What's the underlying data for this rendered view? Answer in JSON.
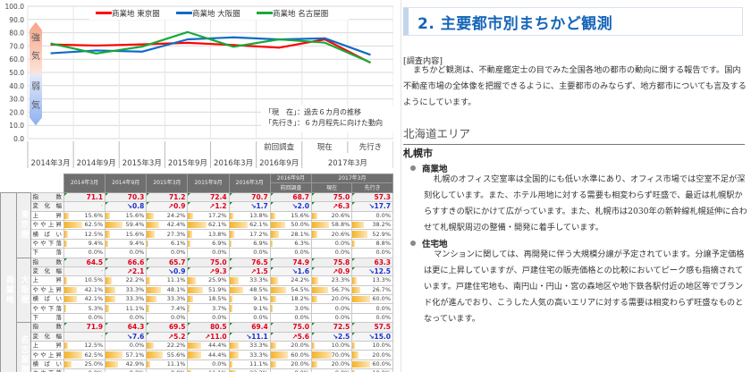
{
  "chart_data": {
    "type": "line",
    "title": "",
    "categories": [
      "2014年3月",
      "2014年9月",
      "2015年3月",
      "2015年9月",
      "2016年3月",
      "2016年9月 前回調査",
      "2017年3月 現在",
      "2017年3月 先行き"
    ],
    "x_axis": {
      "top_labels": [
        "",
        "",
        "",
        "",
        "",
        "前回調査",
        "現在",
        "先行き"
      ],
      "bottom_labels": [
        "2014年3月",
        "2014年9月",
        "2015年3月",
        "2015年9月",
        "2016年3月",
        "2016年9月",
        "2017年3月"
      ]
    },
    "series": [
      {
        "name": "商業地 東京圏",
        "color": "#ff0000",
        "values": [
          71.1,
          70.3,
          71.2,
          72.4,
          70.7,
          68.7,
          75.0,
          57.3
        ]
      },
      {
        "name": "商業地 大阪圏",
        "color": "#0f6bc6",
        "values": [
          64.5,
          66.6,
          65.7,
          75.0,
          76.5,
          74.9,
          75.8,
          63.3
        ]
      },
      {
        "name": "商業地 名古屋圏",
        "color": "#1aa83a",
        "values": [
          71.9,
          64.3,
          69.5,
          80.5,
          69.4,
          75.0,
          72.5,
          57.5
        ]
      }
    ],
    "ylim": [
      0,
      100
    ],
    "yticks": [
      "100.0",
      "90.0",
      "80.0",
      "70.0",
      "60.0",
      "50.0",
      "40.0",
      "30.0",
      "20.0",
      "10.0",
      "0.0"
    ],
    "grid": true,
    "legend_position": "top",
    "arrow_labels": {
      "strong": [
        "強",
        "気"
      ],
      "weak": [
        "弱",
        "気"
      ]
    },
    "annotations": [
      "「現　在」：過去６カ月の推移",
      "「先行き」：６カ月程先に向けた動向"
    ]
  },
  "table": {
    "headers": {
      "periods": [
        "2014年3月",
        "2014年9月",
        "2015年3月",
        "2015年9月",
        "2016年3月",
        "2016年9月",
        "2017年3月"
      ],
      "sub": {
        "prev": "前回調査",
        "now": "現在",
        "future": "先行き"
      }
    },
    "group_label": "商業地",
    "row_labels": [
      "指数",
      "変化幅",
      "上昇",
      "やや上昇",
      "横ばい",
      "やや下落",
      "下落"
    ],
    "regions": [
      {
        "name": "東京圏",
        "index": [
          "71.1",
          "70.3",
          "71.2",
          "72.4",
          "70.7",
          "68.7",
          "75.0",
          "57.3"
        ],
        "change": [
          "-",
          "↘0.8",
          "↗0.9",
          "↗1.2",
          "↘1.7",
          "↘2.0",
          "↗6.3",
          "↘17.7"
        ],
        "change_dir": [
          "none",
          "down",
          "up",
          "up",
          "down",
          "down",
          "up",
          "down"
        ],
        "rise": [
          "15.6%",
          "15.6%",
          "24.2%",
          "17.2%",
          "13.8%",
          "15.6%",
          "20.6%",
          "0.0%"
        ],
        "slight_rise": [
          "62.5%",
          "59.4%",
          "42.4%",
          "62.1%",
          "62.1%",
          "50.0%",
          "58.8%",
          "38.2%"
        ],
        "flat": [
          "12.5%",
          "15.6%",
          "27.3%",
          "13.8%",
          "17.2%",
          "28.1%",
          "20.6%",
          "52.9%"
        ],
        "slight_fall": [
          "9.4%",
          "9.4%",
          "6.1%",
          "6.9%",
          "6.9%",
          "6.3%",
          "0.0%",
          "8.8%"
        ],
        "fall": [
          "0.0%",
          "0.0%",
          "0.0%",
          "0.0%",
          "0.0%",
          "0.0%",
          "0.0%",
          "0.0%"
        ]
      },
      {
        "name": "大阪圏",
        "index": [
          "64.5",
          "66.6",
          "65.7",
          "75.0",
          "76.5",
          "74.9",
          "75.8",
          "63.3"
        ],
        "change": [
          "-",
          "↗2.1",
          "↘0.9",
          "↗9.3",
          "↗1.5",
          "↘1.6",
          "↗0.9",
          "↘12.5"
        ],
        "change_dir": [
          "none",
          "up",
          "down",
          "up",
          "up",
          "down",
          "up",
          "down"
        ],
        "rise": [
          "10.5%",
          "22.2%",
          "11.1%",
          "25.9%",
          "33.3%",
          "24.2%",
          "23.3%",
          "13.3%"
        ],
        "slight_rise": [
          "42.1%",
          "33.3%",
          "48.1%",
          "51.9%",
          "48.5%",
          "54.5%",
          "56.7%",
          "26.7%"
        ],
        "flat": [
          "42.1%",
          "33.3%",
          "33.3%",
          "18.5%",
          "9.1%",
          "18.2%",
          "20.0%",
          "60.0%"
        ],
        "slight_fall": [
          "5.3%",
          "11.1%",
          "7.4%",
          "3.7%",
          "9.1%",
          "3.0%",
          "0.0%",
          "0.0%"
        ],
        "fall": [
          "0.0%",
          "0.0%",
          "0.0%",
          "0.0%",
          "0.0%",
          "0.0%",
          "0.0%",
          "0.0%"
        ]
      },
      {
        "name": "名古屋圏",
        "index": [
          "71.9",
          "64.3",
          "69.5",
          "80.5",
          "69.4",
          "75.0",
          "72.5",
          "57.5"
        ],
        "change": [
          "-",
          "↘7.6",
          "↗5.2",
          "↗11.0",
          "↘11.1",
          "↗5.6",
          "↘2.5",
          "↘15.0"
        ],
        "change_dir": [
          "none",
          "down",
          "up",
          "up",
          "down",
          "up",
          "down",
          "down"
        ],
        "rise": [
          "12.5%",
          "0.0%",
          "22.2%",
          "44.4%",
          "33.3%",
          "20.0%",
          "10.0%",
          "10.0%"
        ],
        "slight_rise": [
          "62.5%",
          "57.1%",
          "55.6%",
          "44.4%",
          "33.3%",
          "60.0%",
          "70.0%",
          "20.0%"
        ],
        "flat": [
          "25.0%",
          "42.9%",
          "11.1%",
          "0.0%",
          "11.1%",
          "20.0%",
          "20.0%",
          "60.0%"
        ],
        "slight_fall": [
          "0.0%",
          "0.0%",
          "0.0%",
          "11.1%",
          "22.2%",
          "0.0%",
          "0.0%",
          "10.0%"
        ],
        "fall": [
          "0.0%",
          "0.0%",
          "11.1%",
          "0.0%",
          "0.0%",
          "0.0%",
          "0.0%",
          "0.0%"
        ]
      }
    ]
  },
  "article": {
    "section_title": "2. 主要都市別まちかど観測",
    "survey_label": "[調査内容]",
    "survey_body": "まちかど観測は、不動産鑑定士の目でみた全国各地の都市の動向に関する報告です。国内不動産市場の全体像を把握できるように、主要都市のみならず、地方都市についても言及するようにしています。",
    "area_heading": "北海道エリア",
    "city": "札幌市",
    "commercial_label": "商業地",
    "commercial_body": "札幌のオフィス空室率は全国的にも低い水準にあり、オフィス市場では空室不足が深刻化しています。また、ホテル用地に対する需要も相変わらず旺盛で、最近は札幌駅からすすきの駅にかけて広がっています。また、札幌市は2030年の新幹線札幌延伸に合わせて札幌駅周辺の整備・開発に着手しています。",
    "residential_label": "住宅地",
    "residential_body": "マンションに関しては、再開発に伴う大規模分譲が予定されています。分譲予定価格は更に上昇していますが、戸建住宅の販売価格との比較においてピーク感も指摘されています。戸建住宅地も、南円山・円山・宮の森地区や地下鉄各駅付近の地区等でブランド化が進んでおり、こうした人気の高いエリアに対する需要は相変わらず旺盛なものとなっています。"
  }
}
